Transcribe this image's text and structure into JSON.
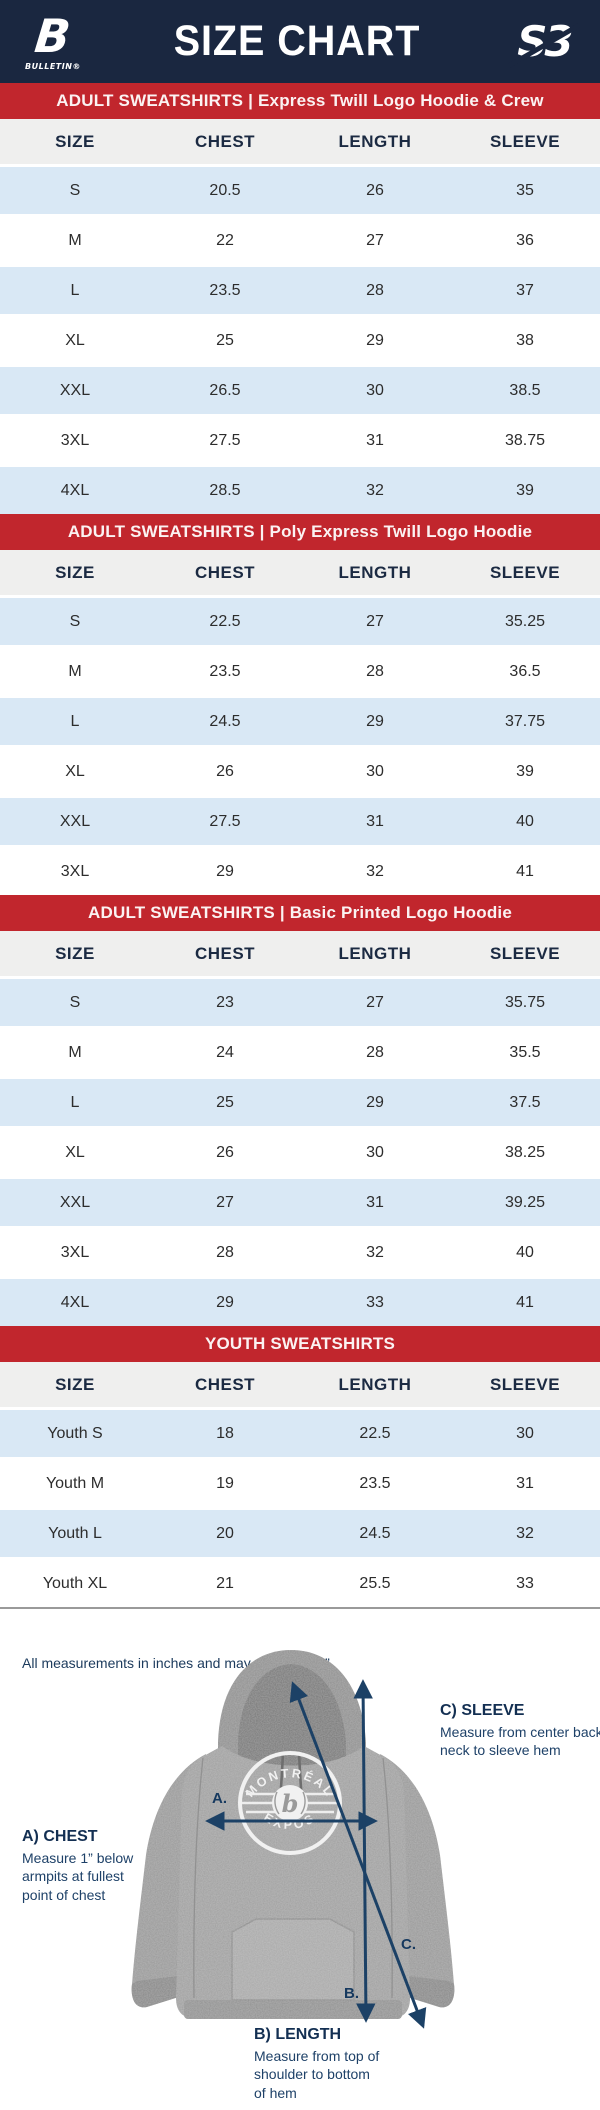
{
  "header": {
    "title": "SIZE CHART",
    "bulletin_logo": {
      "letter": "B",
      "text": "BULLETIN®"
    },
    "s3_logo": {
      "text": "S3"
    }
  },
  "tables": [
    {
      "banner": "ADULT SWEATSHIRTS | Express Twill Logo Hoodie & Crew",
      "columns": [
        "SIZE",
        "CHEST",
        "LENGTH",
        "SLEEVE"
      ],
      "rows": [
        [
          "S",
          "20.5",
          "26",
          "35"
        ],
        [
          "M",
          "22",
          "27",
          "36"
        ],
        [
          "L",
          "23.5",
          "28",
          "37"
        ],
        [
          "XL",
          "25",
          "29",
          "38"
        ],
        [
          "XXL",
          "26.5",
          "30",
          "38.5"
        ],
        [
          "3XL",
          "27.5",
          "31",
          "38.75"
        ],
        [
          "4XL",
          "28.5",
          "32",
          "39"
        ]
      ]
    },
    {
      "banner": "ADULT SWEATSHIRTS | Poly Express Twill Logo Hoodie",
      "columns": [
        "SIZE",
        "CHEST",
        "LENGTH",
        "SLEEVE"
      ],
      "rows": [
        [
          "S",
          "22.5",
          "27",
          "35.25"
        ],
        [
          "M",
          "23.5",
          "28",
          "36.5"
        ],
        [
          "L",
          "24.5",
          "29",
          "37.75"
        ],
        [
          "XL",
          "26",
          "30",
          "39"
        ],
        [
          "XXL",
          "27.5",
          "31",
          "40"
        ],
        [
          "3XL",
          "29",
          "32",
          "41"
        ]
      ]
    },
    {
      "banner": "ADULT SWEATSHIRTS | Basic Printed Logo Hoodie",
      "columns": [
        "SIZE",
        "CHEST",
        "LENGTH",
        "SLEEVE"
      ],
      "rows": [
        [
          "S",
          "23",
          "27",
          "35.75"
        ],
        [
          "M",
          "24",
          "28",
          "35.5"
        ],
        [
          "L",
          "25",
          "29",
          "37.5"
        ],
        [
          "XL",
          "26",
          "30",
          "38.25"
        ],
        [
          "XXL",
          "27",
          "31",
          "39.25"
        ],
        [
          "3XL",
          "28",
          "32",
          "40"
        ],
        [
          "4XL",
          "29",
          "33",
          "41"
        ]
      ]
    },
    {
      "banner": "YOUTH SWEATSHIRTS",
      "columns": [
        "SIZE",
        "CHEST",
        "LENGTH",
        "SLEEVE"
      ],
      "rows": [
        [
          "Youth S",
          "18",
          "22.5",
          "30"
        ],
        [
          "Youth M",
          "19",
          "23.5",
          "31"
        ],
        [
          "Youth L",
          "20",
          "24.5",
          "32"
        ],
        [
          "Youth XL",
          "21",
          "25.5",
          "33"
        ]
      ]
    }
  ],
  "note": "All measurements in inches and may vary +/- 0.5”",
  "diagram": {
    "chest_label": {
      "title": "A) CHEST",
      "desc": "Measure 1” below armpits at fullest point of chest"
    },
    "length_label": {
      "title": "B) LENGTH",
      "desc": "Measure from top of shoulder to bottom of hem"
    },
    "sleeve_label": {
      "title": "C) SLEEVE",
      "desc": "Measure from center back neck to sleeve hem"
    },
    "arrow_letters": {
      "a": "A.",
      "b": "B.",
      "c": "C."
    },
    "hoodie_logo": {
      "top": "MONTRÉAL",
      "bottom": "EXPOS",
      "center": "b"
    }
  },
  "colors": {
    "navy": "#1a2740",
    "red": "#c1262d",
    "row_blue": "#d9e8f5",
    "header_gray": "#efefee",
    "arrow_navy": "#1c4166",
    "label_navy": "#16395f"
  }
}
